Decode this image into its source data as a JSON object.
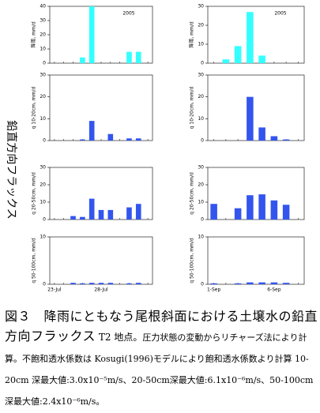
{
  "figure_label": "鉛直方向フラックス",
  "chart_data": [
    {
      "type": "bar",
      "ylabel": "降雨, mm/d",
      "annotation": "2005",
      "color": "#33ffff",
      "categories": [
        null,
        null,
        null,
        null,
        null,
        null,
        null,
        null,
        null,
        null,
        null
      ],
      "values": [
        0,
        0,
        0,
        4,
        40,
        0,
        0,
        0,
        8,
        8,
        0
      ],
      "ylim": [
        0,
        40
      ],
      "yticks": [
        0,
        10,
        20,
        30,
        40
      ]
    },
    {
      "type": "bar",
      "ylabel": "降雨, mm/d",
      "annotation": "2005",
      "color": "#33ffff",
      "categories": [
        null,
        null,
        null,
        null,
        null,
        null,
        null,
        null
      ],
      "values": [
        0,
        2,
        9,
        27,
        4,
        0,
        0,
        0
      ],
      "ylim": [
        0,
        30
      ],
      "yticks": [
        0,
        10,
        20,
        30
      ]
    },
    {
      "type": "bar",
      "ylabel": "q 10-20cm, mm/d",
      "color": "#3355ee",
      "categories": [
        null,
        null,
        null,
        null,
        null,
        null,
        null,
        null,
        null,
        null,
        null
      ],
      "values": [
        0,
        0,
        0,
        0.5,
        9,
        0,
        3,
        0,
        1,
        1,
        0
      ],
      "ylim": [
        0,
        30
      ],
      "yticks": [
        0,
        10,
        20,
        30
      ]
    },
    {
      "type": "bar",
      "ylabel": "q 10-20cm, mm/d",
      "color": "#3355ee",
      "categories": [
        null,
        null,
        null,
        null,
        null,
        null,
        null,
        null
      ],
      "values": [
        0,
        0,
        0,
        20,
        6,
        2,
        0.5,
        0
      ],
      "ylim": [
        0,
        30
      ],
      "yticks": [
        0,
        10,
        20,
        30
      ]
    },
    {
      "type": "bar",
      "ylabel": "q 20-50cm, mm/d",
      "color": "#3355ee",
      "categories": [
        null,
        null,
        null,
        null,
        null,
        null,
        null,
        null,
        null,
        null,
        null
      ],
      "values": [
        0,
        0,
        2,
        1.5,
        12,
        5.5,
        5.5,
        0,
        7,
        9,
        0
      ],
      "ylim": [
        0,
        30
      ],
      "yticks": [
        0,
        10,
        20,
        30
      ]
    },
    {
      "type": "bar",
      "ylabel": "q 20-50cm, mm/d",
      "color": "#3355ee",
      "categories": [
        null,
        null,
        null,
        null,
        null,
        null,
        null,
        null
      ],
      "values": [
        9,
        0,
        6.5,
        14,
        14.5,
        11,
        8.5,
        0
      ],
      "ylim": [
        0,
        30
      ],
      "yticks": [
        0,
        10,
        20,
        30
      ]
    },
    {
      "type": "bar",
      "ylabel": "q 50-100cm, mm/d",
      "color": "#3355ee",
      "categories": [
        "23-Jul",
        null,
        null,
        null,
        null,
        "28-Jul",
        null,
        null,
        null,
        null,
        null
      ],
      "values": [
        0,
        0,
        0.3,
        0.2,
        0.3,
        0.3,
        0.3,
        0,
        0.2,
        0.3,
        0
      ],
      "ylim": [
        0,
        10
      ],
      "yticks": [
        0,
        10
      ]
    },
    {
      "type": "bar",
      "ylabel": "q 50-100cm, mm/d",
      "color": "#3355ee",
      "categories": [
        "1-Sep",
        null,
        null,
        null,
        null,
        "6-Sep",
        null,
        null
      ],
      "values": [
        0.2,
        0,
        0.2,
        0.4,
        0.4,
        0.4,
        0.3,
        0
      ],
      "ylim": [
        0,
        10
      ],
      "yticks": [
        0,
        10
      ]
    }
  ],
  "caption": {
    "title": "図３　降雨にともなう尾根斜面における土壌水の鉛直方向フラックス",
    "site": "T2 地点。",
    "body": "圧力状態の変動からリチャーズ法により計算。不飽和透水係数は Kosugi(1996)モデルにより飽和透水係数より計算 10-20cm 深最大値:3.0x10⁻⁵m/s、20-50cm深最大値:6.1x10⁻⁶m/s、50-100cm深最大値:2.4x10⁻⁶m/s。"
  }
}
